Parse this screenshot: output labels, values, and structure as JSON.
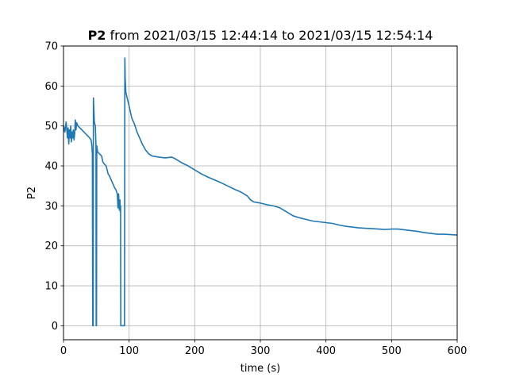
{
  "chart_data": {
    "type": "line",
    "title_bold": "P2",
    "title_rest": " from 2021/03/15 12:44:14 to 2021/03/15 12:54:14",
    "xlabel": "time (s)",
    "ylabel": "P2",
    "xlim": [
      0,
      600
    ],
    "ylim": [
      -3.5,
      70
    ],
    "xticks": [
      0,
      100,
      200,
      300,
      400,
      500,
      600
    ],
    "yticks": [
      0,
      10,
      20,
      30,
      40,
      50,
      60,
      70
    ],
    "grid": true,
    "series_color": "#1f77b4",
    "series": [
      {
        "values": [
          [
            0,
            50
          ],
          [
            2,
            48.5
          ],
          [
            4,
            51
          ],
          [
            6,
            47
          ],
          [
            7,
            49.5
          ],
          [
            8,
            45.5
          ],
          [
            9,
            49
          ],
          [
            10,
            47
          ],
          [
            11,
            50
          ],
          [
            12,
            46
          ],
          [
            13,
            48.5
          ],
          [
            14,
            47
          ],
          [
            15,
            49
          ],
          [
            16,
            46.5
          ],
          [
            17,
            48
          ],
          [
            18,
            51.5
          ],
          [
            19,
            49
          ],
          [
            20,
            50.8
          ],
          [
            22,
            50
          ],
          [
            25,
            49.5
          ],
          [
            28,
            49
          ],
          [
            31,
            48.5
          ],
          [
            34,
            48
          ],
          [
            37,
            47.5
          ],
          [
            40,
            47
          ],
          [
            42,
            46.5
          ],
          [
            43,
            45.5
          ],
          [
            44,
            43
          ],
          [
            44.5,
            0
          ],
          [
            45.2,
            0
          ],
          [
            45.6,
            57
          ],
          [
            46.3,
            54
          ],
          [
            47,
            51
          ],
          [
            48.5,
            50
          ],
          [
            49.5,
            45
          ],
          [
            49.8,
            0
          ],
          [
            50.3,
            0
          ],
          [
            50.7,
            45
          ],
          [
            52,
            43.5
          ],
          [
            55,
            43
          ],
          [
            58,
            42.5
          ],
          [
            60,
            41
          ],
          [
            62,
            40.5
          ],
          [
            65,
            40
          ],
          [
            68,
            38
          ],
          [
            70,
            37.5
          ],
          [
            74,
            36
          ],
          [
            78,
            34.5
          ],
          [
            80,
            34
          ],
          [
            82,
            33
          ],
          [
            83,
            29.5
          ],
          [
            84,
            33
          ],
          [
            85,
            29
          ],
          [
            86,
            31.5
          ],
          [
            86.5,
            28.5
          ],
          [
            87,
            30
          ],
          [
            87.3,
            0
          ],
          [
            93,
            0
          ],
          [
            93.5,
            67
          ],
          [
            94,
            62
          ],
          [
            95,
            58.5
          ],
          [
            97,
            57
          ],
          [
            100,
            55
          ],
          [
            104,
            52
          ],
          [
            108,
            50.5
          ],
          [
            112,
            48.5
          ],
          [
            116,
            47
          ],
          [
            120,
            45.5
          ],
          [
            125,
            44
          ],
          [
            130,
            43
          ],
          [
            135,
            42.5
          ],
          [
            145,
            42.2
          ],
          [
            155,
            42
          ],
          [
            165,
            42.2
          ],
          [
            170,
            41.8
          ],
          [
            180,
            40.8
          ],
          [
            190,
            40
          ],
          [
            200,
            39
          ],
          [
            210,
            38
          ],
          [
            220,
            37.2
          ],
          [
            230,
            36.5
          ],
          [
            240,
            35.8
          ],
          [
            250,
            35
          ],
          [
            260,
            34.2
          ],
          [
            270,
            33.5
          ],
          [
            280,
            32.5
          ],
          [
            285,
            31.5
          ],
          [
            290,
            31
          ],
          [
            300,
            30.7
          ],
          [
            310,
            30.3
          ],
          [
            320,
            30
          ],
          [
            330,
            29.5
          ],
          [
            340,
            28.5
          ],
          [
            350,
            27.5
          ],
          [
            360,
            27
          ],
          [
            370,
            26.6
          ],
          [
            380,
            26.2
          ],
          [
            390,
            26
          ],
          [
            400,
            25.8
          ],
          [
            410,
            25.6
          ],
          [
            420,
            25.2
          ],
          [
            430,
            24.9
          ],
          [
            440,
            24.7
          ],
          [
            450,
            24.5
          ],
          [
            460,
            24.4
          ],
          [
            470,
            24.3
          ],
          [
            480,
            24.2
          ],
          [
            490,
            24.1
          ],
          [
            500,
            24.2
          ],
          [
            510,
            24.2
          ],
          [
            520,
            24
          ],
          [
            530,
            23.8
          ],
          [
            540,
            23.6
          ],
          [
            550,
            23.3
          ],
          [
            560,
            23.1
          ],
          [
            570,
            22.9
          ],
          [
            580,
            22.9
          ],
          [
            590,
            22.8
          ],
          [
            600,
            22.7
          ]
        ]
      }
    ]
  }
}
